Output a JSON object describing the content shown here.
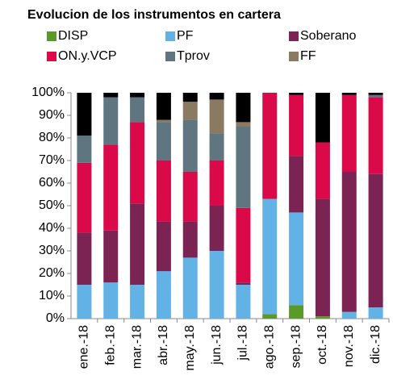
{
  "chart_data": {
    "type": "bar",
    "stacked": true,
    "title": "Evolucion de los instrumentos en cartera",
    "categories": [
      "ene.-18",
      "feb.-18",
      "mar.-18",
      "abr.-18",
      "may.-18",
      "jun.-18",
      "jul.-18",
      "ago.-18",
      "sep.-18",
      "oct.-18",
      "nov.-18",
      "dic.-18"
    ],
    "series": [
      {
        "name": "DISP",
        "color": "#5a9a2a",
        "values": [
          0,
          0,
          0,
          0,
          0,
          0,
          0,
          2,
          6,
          1,
          0,
          0
        ]
      },
      {
        "name": "PF",
        "color": "#63b2e6",
        "values": [
          15,
          16,
          15,
          21,
          27,
          30,
          15,
          51,
          41,
          0,
          3,
          5
        ]
      },
      {
        "name": "Soberano",
        "color": "#7b2454",
        "values": [
          23,
          23,
          36,
          22,
          16,
          20,
          1,
          0,
          25,
          52,
          62,
          59
        ]
      },
      {
        "name": "ON.y.VCP",
        "color": "#d9094a",
        "values": [
          31,
          38,
          36,
          27,
          22,
          20,
          33,
          47,
          27,
          25,
          34,
          34
        ]
      },
      {
        "name": "Tprov",
        "color": "#5f7580",
        "values": [
          12,
          21,
          11,
          17,
          23,
          12,
          36,
          0,
          0,
          0,
          0,
          1
        ]
      },
      {
        "name": "FF",
        "color": "#8b7a62",
        "values": [
          0,
          0,
          0,
          1,
          8,
          15,
          2,
          0,
          0,
          0,
          0,
          0
        ]
      },
      {
        "color": "#000000",
        "values": [
          19,
          2,
          2,
          12,
          4,
          3,
          13,
          0,
          1,
          22,
          1,
          1
        ]
      }
    ],
    "ylim": [
      0,
      100
    ],
    "yticks": [
      {
        "value": 0,
        "label": "0%"
      },
      {
        "value": 10,
        "label": "10%"
      },
      {
        "value": 20,
        "label": "20%"
      },
      {
        "value": 30,
        "label": "30%"
      },
      {
        "value": 40,
        "label": "40%"
      },
      {
        "value": 50,
        "label": "50%"
      },
      {
        "value": 60,
        "label": "60%"
      },
      {
        "value": 70,
        "label": "70%"
      },
      {
        "value": 80,
        "label": "80%"
      },
      {
        "value": 90,
        "label": "90%"
      },
      {
        "value": 100,
        "label": "100%"
      }
    ]
  }
}
